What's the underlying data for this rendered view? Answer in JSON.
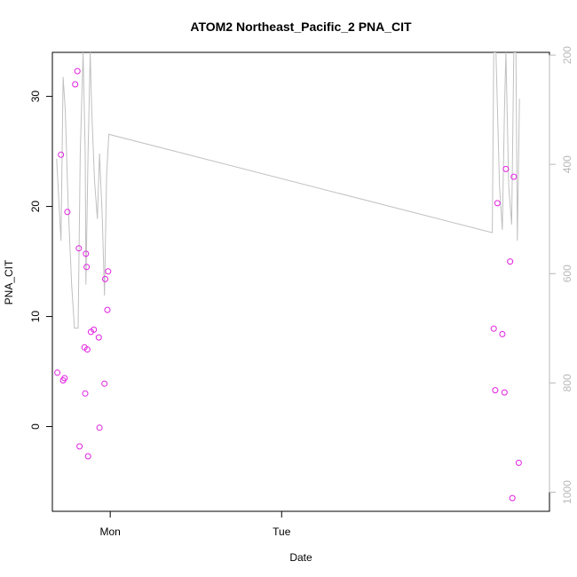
{
  "chart_data": {
    "type": "scatter",
    "title": "ATOM2 Northeast_Pacific_2 PNA_CIT",
    "xlabel": "Date",
    "ylabel": "PNA_CIT",
    "x_ticks": [
      "Mon",
      "Tue"
    ],
    "y_left": {
      "lim": [
        -7.7,
        34.0
      ],
      "ticks": [
        0,
        10,
        20,
        30
      ]
    },
    "y_right": {
      "lim": [
        1035,
        195
      ],
      "reversed": true,
      "ticks": [
        200,
        400,
        600,
        800,
        1000
      ],
      "tick_color": "#b8b8b8"
    },
    "x_lim_hours": [
      -8.1,
      61.5
    ],
    "series": [
      {
        "type": "scatter",
        "color": "#e020e0",
        "marker": "open-circle",
        "points": [
          {
            "x": -7.4,
            "y": 4.9
          },
          {
            "x": -6.9,
            "y": 24.7
          },
          {
            "x": -6.6,
            "y": 4.2
          },
          {
            "x": -6.4,
            "y": 4.4
          },
          {
            "x": -6.0,
            "y": 19.5
          },
          {
            "x": -4.9,
            "y": 31.1
          },
          {
            "x": -4.6,
            "y": 32.3
          },
          {
            "x": -4.4,
            "y": 16.2
          },
          {
            "x": -4.3,
            "y": -1.8
          },
          {
            "x": -3.6,
            "y": 7.2
          },
          {
            "x": -3.5,
            "y": 3.0
          },
          {
            "x": -3.4,
            "y": 15.7
          },
          {
            "x": -3.3,
            "y": 14.5
          },
          {
            "x": -3.2,
            "y": 7.0
          },
          {
            "x": -3.1,
            "y": -2.7
          },
          {
            "x": -2.7,
            "y": 8.6
          },
          {
            "x": -2.3,
            "y": 8.8
          },
          {
            "x": -1.6,
            "y": 8.1
          },
          {
            "x": -1.5,
            "y": -0.1
          },
          {
            "x": -0.8,
            "y": 3.9
          },
          {
            "x": -0.7,
            "y": 13.4
          },
          {
            "x": -0.4,
            "y": 10.6
          },
          {
            "x": -0.3,
            "y": 14.1
          },
          {
            "x": 53.7,
            "y": 8.9
          },
          {
            "x": 53.9,
            "y": 3.3
          },
          {
            "x": 54.2,
            "y": 20.3
          },
          {
            "x": 54.9,
            "y": 8.4
          },
          {
            "x": 55.2,
            "y": 3.1
          },
          {
            "x": 55.4,
            "y": 23.4
          },
          {
            "x": 56.0,
            "y": 15.0
          },
          {
            "x": 56.3,
            "y": -6.5
          },
          {
            "x": 56.5,
            "y": 22.7
          },
          {
            "x": 57.2,
            "y": -3.3
          }
        ]
      },
      {
        "type": "line",
        "color": "#c0c0c0",
        "axis": "right",
        "points": [
          {
            "x": -7.5,
            "y": 390
          },
          {
            "x": -6.9,
            "y": 540
          },
          {
            "x": -6.6,
            "y": 240
          },
          {
            "x": -6.3,
            "y": 300
          },
          {
            "x": -5.9,
            "y": 470
          },
          {
            "x": -5.4,
            "y": 620
          },
          {
            "x": -5.0,
            "y": 700
          },
          {
            "x": -4.5,
            "y": 700
          },
          {
            "x": -4.2,
            "y": 380
          },
          {
            "x": -3.8,
            "y": 195
          },
          {
            "x": -3.5,
            "y": 380
          },
          {
            "x": -3.4,
            "y": 620
          },
          {
            "x": -3.1,
            "y": 380
          },
          {
            "x": -2.8,
            "y": 195
          },
          {
            "x": -2.6,
            "y": 300
          },
          {
            "x": -2.2,
            "y": 430
          },
          {
            "x": -1.8,
            "y": 500
          },
          {
            "x": -1.5,
            "y": 380
          },
          {
            "x": -1.1,
            "y": 500
          },
          {
            "x": -0.8,
            "y": 640
          },
          {
            "x": -0.5,
            "y": 420
          },
          {
            "x": -0.2,
            "y": 345
          },
          {
            "x": 53.5,
            "y": 525
          },
          {
            "x": 53.7,
            "y": 195
          },
          {
            "x": 54.0,
            "y": 195
          },
          {
            "x": 54.5,
            "y": 440
          },
          {
            "x": 54.9,
            "y": 520
          },
          {
            "x": 55.2,
            "y": 300
          },
          {
            "x": 55.4,
            "y": 195
          },
          {
            "x": 55.8,
            "y": 440
          },
          {
            "x": 56.2,
            "y": 510
          },
          {
            "x": 56.5,
            "y": 195
          },
          {
            "x": 56.8,
            "y": 195
          },
          {
            "x": 57.0,
            "y": 540
          },
          {
            "x": 57.3,
            "y": 280
          }
        ]
      }
    ]
  }
}
